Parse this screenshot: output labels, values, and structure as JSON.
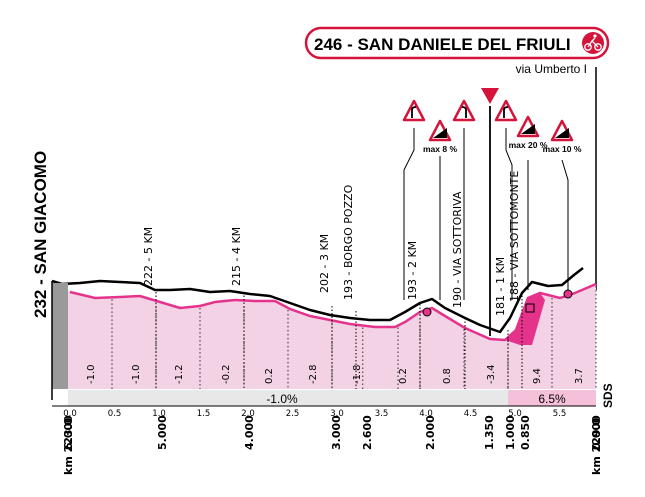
{
  "header": {
    "title": "246 - SAN DANIELE DEL FRIULI",
    "subtitle": "via Umberto I",
    "finish_icon": "cyclist-finish-icon"
  },
  "start": {
    "label": "232 - SAN GIACOMO"
  },
  "waypoints": [
    {
      "label": "222 - 5 KM",
      "km": 1.0
    },
    {
      "label": "215 - 4 KM",
      "km": 2.0
    },
    {
      "label": "202 - 3 KM",
      "km": 3.0
    },
    {
      "label": "193 - BORGO POZZO",
      "km": 3.25
    },
    {
      "label": "193 - 2 KM",
      "km": 4.0
    },
    {
      "label": "190 - VIA SOTTORIVA",
      "km": 4.5
    },
    {
      "label": "181 - 1 KM",
      "km": 5.0
    },
    {
      "label": "188 - VIA SOTTOMONTE",
      "km": 5.15
    }
  ],
  "signs": [
    {
      "kind": "right-bend-icon",
      "label": ""
    },
    {
      "kind": "steep-ascent-icon",
      "label": "max 8 %"
    },
    {
      "kind": "left-bend-icon",
      "label": ""
    },
    {
      "kind": "flamme-rouge-icon",
      "label": ""
    },
    {
      "kind": "right-bend-icon",
      "label": ""
    },
    {
      "kind": "steep-ascent-icon",
      "label": "max 20 %"
    },
    {
      "kind": "steep-ascent-icon",
      "label": "max 10 %"
    }
  ],
  "segment_gradients": [
    "-1.0",
    "-1.0",
    "-1.2",
    "-0.2",
    "0.2",
    "-2.8",
    "-1.8",
    "0.2",
    "0.8",
    "-3.4",
    "9.4",
    "3.7"
  ],
  "bottom_bar": {
    "left_gradient": "-1.0%",
    "right_gradient": "6.5%",
    "sds": "SDS"
  },
  "km_ticks": [
    "0.0",
    "0.5",
    "1.0",
    "1.5",
    "2.0",
    "2.5",
    "3.0",
    "3.5",
    "4.0",
    "4.5",
    "5.0",
    "5.5"
  ],
  "remaining": [
    "6.000",
    "5.000",
    "4.000",
    "3.000",
    "2.600",
    "2.000",
    "1.350",
    "1.000",
    "0.850",
    "0.000"
  ],
  "axis": {
    "start_km": "km 223.0",
    "end_km": "km 229.0"
  },
  "colors": {
    "profile_fill": "#f4d2e6",
    "climb_fill": "#e5338c",
    "badge_red": "#d4143a",
    "bar_pink": "#f4c0da"
  }
}
